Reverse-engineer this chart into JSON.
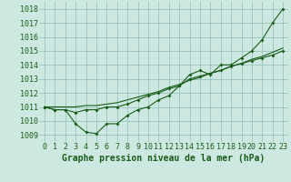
{
  "x": [
    0,
    1,
    2,
    3,
    4,
    5,
    6,
    7,
    8,
    9,
    10,
    11,
    12,
    13,
    14,
    15,
    16,
    17,
    18,
    19,
    20,
    21,
    22,
    23
  ],
  "line1": [
    1011.0,
    1010.8,
    1010.8,
    1009.8,
    1009.2,
    1009.1,
    1009.8,
    1009.8,
    1010.4,
    1010.8,
    1011.0,
    1011.5,
    1011.8,
    1012.5,
    1013.3,
    1013.6,
    1013.3,
    1014.0,
    1014.0,
    1014.5,
    1015.0,
    1015.8,
    1017.0,
    1018.0
  ],
  "line2": [
    1011.0,
    1010.8,
    1010.8,
    1010.6,
    1010.8,
    1010.8,
    1011.0,
    1011.0,
    1011.2,
    1011.5,
    1011.8,
    1012.0,
    1012.3,
    1012.5,
    1013.0,
    1013.2,
    1013.4,
    1013.6,
    1013.9,
    1014.1,
    1014.3,
    1014.5,
    1014.7,
    1015.0
  ],
  "line3": [
    1011.0,
    1011.0,
    1011.0,
    1011.0,
    1011.1,
    1011.1,
    1011.2,
    1011.3,
    1011.5,
    1011.7,
    1011.9,
    1012.1,
    1012.4,
    1012.6,
    1012.9,
    1013.1,
    1013.4,
    1013.6,
    1013.9,
    1014.1,
    1014.4,
    1014.6,
    1014.9,
    1015.2
  ],
  "ylim": [
    1008.5,
    1018.5
  ],
  "yticks": [
    1009,
    1010,
    1011,
    1012,
    1013,
    1014,
    1015,
    1016,
    1017,
    1018
  ],
  "xticks": [
    0,
    1,
    2,
    3,
    4,
    5,
    6,
    7,
    8,
    9,
    10,
    11,
    12,
    13,
    14,
    15,
    16,
    17,
    18,
    19,
    20,
    21,
    22,
    23
  ],
  "xlabel": "Graphe pression niveau de la mer (hPa)",
  "line_color": "#1a5c1a",
  "marker": "D",
  "marker_size": 2,
  "bg_color": "#cde8e0",
  "grid_color": "#8fbfb5",
  "text_color": "#1a5c1a",
  "font_size_label": 7,
  "font_size_tick": 6
}
